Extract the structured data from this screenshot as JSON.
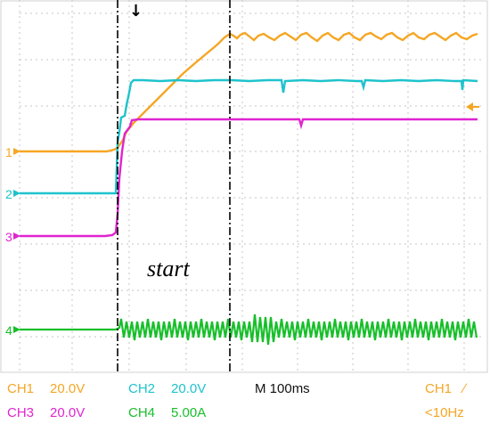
{
  "annotation": "start",
  "trigger_marker": "↓",
  "channel_markers": [
    {
      "label": "1",
      "channel": "CH1",
      "color": "#f5a623"
    },
    {
      "label": "2",
      "channel": "CH2",
      "color": "#1ec3cc"
    },
    {
      "label": "3",
      "channel": "CH3",
      "color": "#e024d0"
    },
    {
      "label": "4",
      "channel": "CH4",
      "color": "#17bf2a"
    }
  ],
  "status": {
    "ch1": "CH1",
    "ch1_scale": "20.0V",
    "ch2": "CH2",
    "ch2_scale": "20.0V",
    "timebase": "M 100ms",
    "trigger_source": "CH1",
    "trigger_slope": "∕",
    "ch3": "CH3",
    "ch3_scale": "20.0V",
    "ch4": "CH4",
    "ch4_scale": "5.00A",
    "trigger_freq": "<10Hz"
  },
  "colors": {
    "ch1": "#f5a623",
    "ch2": "#1ec3cc",
    "ch3": "#e024d0",
    "ch4": "#17bf2a",
    "grid": "#b8b8b8",
    "cursor": "#000000"
  }
}
